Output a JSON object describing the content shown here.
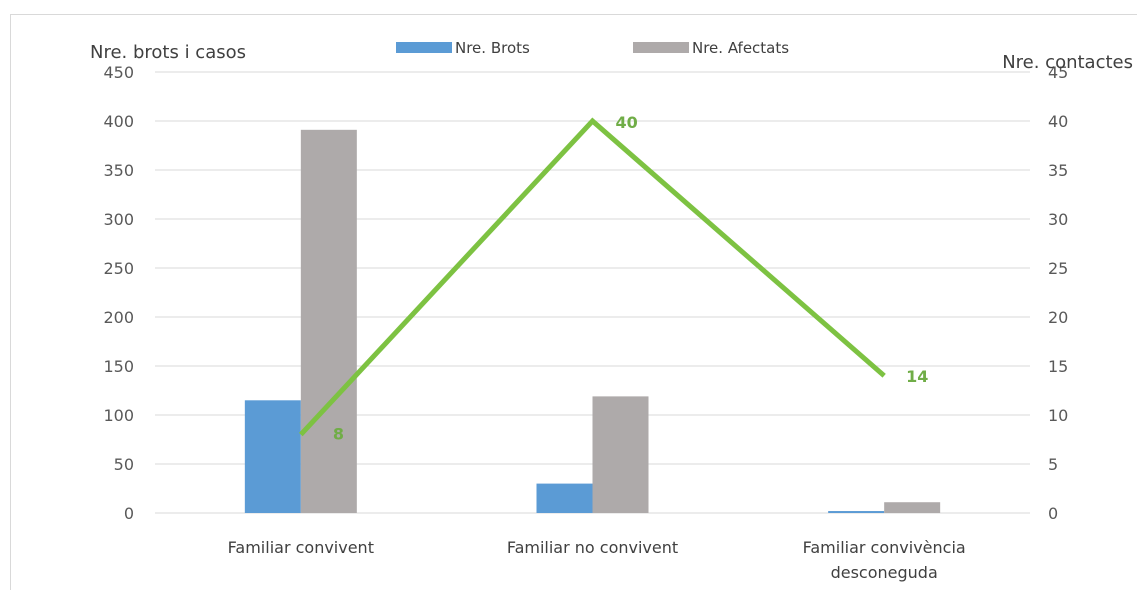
{
  "chart_data": {
    "type": "bar",
    "categories": [
      "Familiar convivent",
      "Familiar no convivent",
      [
        "Familiar convivència",
        "desconeguda"
      ]
    ],
    "series": [
      {
        "name": "Nre. Brots",
        "type": "bar",
        "axis": "left",
        "color": "#5b9bd5",
        "values": [
          115,
          30,
          2
        ]
      },
      {
        "name": "Nre. Afectats",
        "type": "bar",
        "axis": "left",
        "color": "#aeaaaa",
        "values": [
          391,
          119,
          11
        ]
      },
      {
        "type": "line",
        "axis": "right",
        "color": "#7dc242",
        "values": [
          8,
          40,
          14
        ],
        "labels": [
          "8",
          "40",
          "14"
        ]
      }
    ],
    "ylabel": "Nre. brots i casos",
    "y2label": "Nre. contactes",
    "ylim": [
      0,
      450
    ],
    "y2lim": [
      0,
      45
    ],
    "yticks": [
      "0",
      "50",
      "100",
      "150",
      "200",
      "250",
      "300",
      "350",
      "400",
      "450"
    ],
    "y2ticks": [
      "0",
      "5",
      "10",
      "15",
      "20",
      "25",
      "30",
      "35",
      "40",
      "45"
    ],
    "grid": true,
    "legend": "top"
  }
}
